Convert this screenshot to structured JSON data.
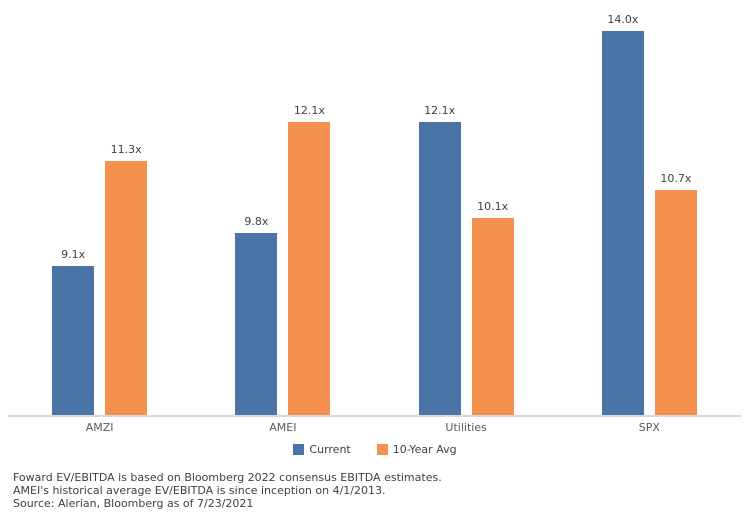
{
  "chart_data": {
    "type": "bar",
    "title": "",
    "xlabel": "",
    "ylabel": "",
    "categories": [
      "AMZI",
      "AMEI",
      "Utilities",
      "SPX"
    ],
    "series": [
      {
        "name": "Current",
        "color": "#4a73a6",
        "values": [
          9.1,
          9.8,
          12.1,
          14.0
        ],
        "labels": [
          "9.1x",
          "9.8x",
          "12.1x",
          "14.0x"
        ]
      },
      {
        "name": "10-Year Avg",
        "color": "#f5914e",
        "values": [
          11.3,
          12.1,
          10.1,
          10.7
        ],
        "labels": [
          "11.3x",
          "12.1x",
          "10.1x",
          "10.7x"
        ]
      }
    ],
    "ylim": [
      6.0,
      14.65
    ],
    "grid": false,
    "y_axis_visible": false,
    "legend_position": "bottom-center",
    "axis_line_color": "#d9d9d9",
    "value_label_color": "#404040",
    "category_label_color": "#595959"
  },
  "footnotes": {
    "line1": "Foward EV/EBITDA is based on Bloomberg 2022 consensus EBITDA estimates.",
    "line2": "AMEI's historical average EV/EBITDA is since inception on 4/1/2013.",
    "line3": "Source: Alerian, Bloomberg as of 7/23/2021"
  }
}
